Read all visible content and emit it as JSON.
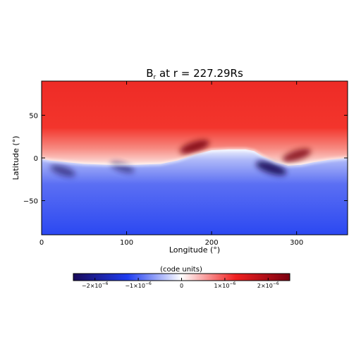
{
  "chart_data": {
    "type": "heatmap",
    "title_main": "B",
    "title_sub": "r",
    "title_rest": " at r = 227.29Rs",
    "xlabel": "Longitude (°)",
    "ylabel": "Latitude (°)",
    "xlim": [
      0,
      360
    ],
    "ylim": [
      -90,
      90
    ],
    "x_ticks": [
      0,
      100,
      200,
      300
    ],
    "y_ticks": [
      -50,
      0,
      50
    ],
    "x_tick_labels": [
      "0",
      "100",
      "200",
      "300"
    ],
    "y_tick_labels": [
      "−50",
      "0",
      "50"
    ],
    "colorbar": {
      "label": "(code units)",
      "range": [
        -2.5e-06,
        2.5e-06
      ],
      "ticks": [
        -2e-06,
        -1e-06,
        0,
        1e-06,
        2e-06
      ],
      "tick_labels": [
        {
          "mant": "−2×10",
          "exp": "−6"
        },
        {
          "mant": "−1×10",
          "exp": "−6"
        },
        {
          "mant": "0",
          "exp": ""
        },
        {
          "mant": "1×10",
          "exp": "−6"
        },
        {
          "mant": "2×10",
          "exp": "−6"
        }
      ],
      "colors": [
        "#1a0a5a",
        "#1e3cf0",
        "#ffffff",
        "#f02020",
        "#7a0010"
      ]
    },
    "neutral_line": {
      "lon": [
        0,
        10,
        30,
        50,
        80,
        110,
        140,
        160,
        180,
        200,
        220,
        240,
        250,
        260,
        275,
        290,
        305,
        320,
        340,
        360
      ],
      "lat": [
        -1,
        -3,
        -5,
        -7,
        -8,
        -8,
        -7,
        -3,
        4,
        9,
        10,
        10,
        8,
        2,
        -5,
        -9,
        -8,
        -5,
        -2,
        0
      ]
    },
    "features": [
      {
        "kind": "negative",
        "lon": 25,
        "lat": -15,
        "strength": 0.6
      },
      {
        "kind": "negative",
        "lon": 95,
        "lat": -11,
        "strength": 0.55
      },
      {
        "kind": "negative",
        "lon": 270,
        "lat": -12,
        "strength": 0.9
      },
      {
        "kind": "positive",
        "lon": 180,
        "lat": 13,
        "strength": 0.85
      },
      {
        "kind": "positive",
        "lon": 300,
        "lat": 3,
        "strength": 0.8
      }
    ]
  }
}
